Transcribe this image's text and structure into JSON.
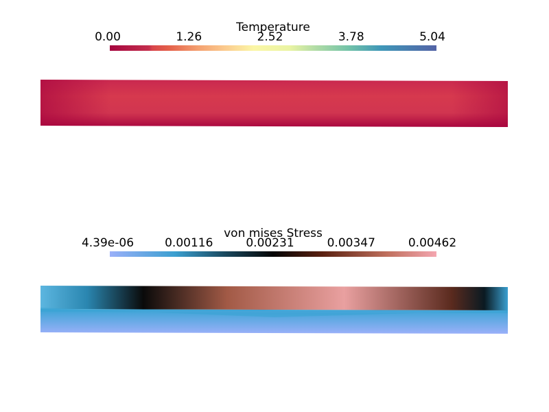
{
  "panels": [
    {
      "title": "Temperature",
      "ticks": [
        "0.00",
        "1.26",
        "2.52",
        "3.78",
        "5.04"
      ]
    },
    {
      "title": "von mises Stress",
      "ticks": [
        "4.39e-06",
        "0.00116",
        "0.00231",
        "0.00347",
        "0.00462"
      ]
    }
  ]
}
